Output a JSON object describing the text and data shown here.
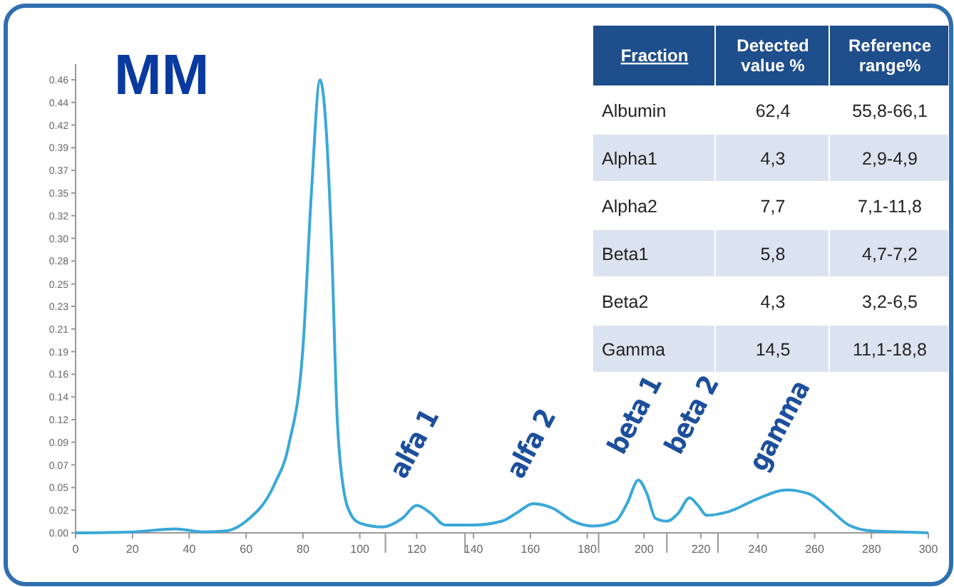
{
  "chart_data": [
    {
      "type": "line",
      "title": "MM",
      "x": [
        0,
        20,
        35,
        45,
        53,
        60,
        70,
        75,
        80,
        83,
        86,
        88,
        90,
        92,
        94,
        97,
        100,
        108,
        115,
        120,
        125,
        130,
        140,
        150,
        155,
        161,
        168,
        175,
        182,
        190,
        194,
        198,
        201,
        204,
        208,
        212,
        216,
        219,
        222,
        230,
        240,
        250,
        258,
        265,
        272,
        280,
        290,
        300
      ],
      "series": [
        {
          "color": "#3aa8d8",
          "values": [
            0,
            0.001,
            0.004,
            0.001,
            0.002,
            0.012,
            0.05,
            0.09,
            0.19,
            0.35,
            0.464,
            0.42,
            0.3,
            0.12,
            0.05,
            0.018,
            0.01,
            0.006,
            0.015,
            0.028,
            0.02,
            0.008,
            0.008,
            0.012,
            0.02,
            0.03,
            0.025,
            0.012,
            0.007,
            0.012,
            0.03,
            0.054,
            0.04,
            0.015,
            0.012,
            0.02,
            0.036,
            0.028,
            0.018,
            0.022,
            0.035,
            0.044,
            0.04,
            0.025,
            0.008,
            0.002,
            0.001,
            0
          ]
        }
      ],
      "xlim": [
        0,
        300
      ],
      "ylim": [
        0,
        0.48
      ],
      "xticks": [
        0,
        20,
        40,
        60,
        80,
        100,
        {
          "value": 109,
          "label": null
        },
        120,
        {
          "value": 137,
          "label": null
        },
        140,
        160,
        180,
        {
          "value": 184,
          "label": null
        },
        200,
        {
          "value": 208,
          "label": null
        },
        220,
        {
          "value": 226,
          "label": null
        },
        240,
        260,
        280,
        300
      ],
      "yticks": [
        {
          "value": 0,
          "label": "0.00"
        },
        {
          "value": 0.0232,
          "label": "0.02"
        },
        {
          "value": 0.0464,
          "label": "0.05"
        },
        {
          "value": 0.0696,
          "label": "0.07"
        },
        {
          "value": 0.0928,
          "label": "0.09"
        },
        {
          "value": 0.116,
          "label": "0.12"
        },
        {
          "value": 0.1392,
          "label": "0.14"
        },
        {
          "value": 0.1624,
          "label": "0.16"
        },
        {
          "value": 0.1856,
          "label": "0.19"
        },
        {
          "value": 0.2088,
          "label": "0.21"
        },
        {
          "value": 0.232,
          "label": "0.23"
        },
        {
          "value": 0.2548,
          "label": "0.25"
        },
        {
          "value": 0.2784,
          "label": "0.28"
        },
        {
          "value": 0.3016,
          "label": "0.30"
        },
        {
          "value": 0.3248,
          "label": "0.32"
        },
        {
          "value": 0.348,
          "label": "0.35"
        },
        {
          "value": 0.3712,
          "label": "0.37"
        },
        {
          "value": 0.3944,
          "label": "0.39"
        },
        {
          "value": 0.4176,
          "label": "0.42"
        },
        {
          "value": 0.4408,
          "label": "0.44"
        },
        {
          "value": 0.464,
          "label": "0.46"
        }
      ],
      "grid": false,
      "marker": "none",
      "line_style": "solid",
      "annotations": [
        "alfa 1",
        "alfa 2",
        "beta 1",
        "beta 2",
        "gamma"
      ]
    },
    {
      "type": "other",
      "categories": [
        "Fraction",
        "Detected value %",
        "Reference range%"
      ],
      "cell_labels": [
        [
          "Albumin",
          "62,4",
          "55,8-66,1"
        ],
        [
          "Alpha1",
          "4,3",
          "2,9-4,9"
        ],
        [
          "Alpha2",
          "7,7",
          "7,1-11,8"
        ],
        [
          "Beta1",
          "5,8",
          "4,7-7,2"
        ],
        [
          "Beta2",
          "4,3",
          "3,2-6,5"
        ],
        [
          "Gamma",
          "14,5",
          "11,1-18,8"
        ]
      ]
    }
  ]
}
